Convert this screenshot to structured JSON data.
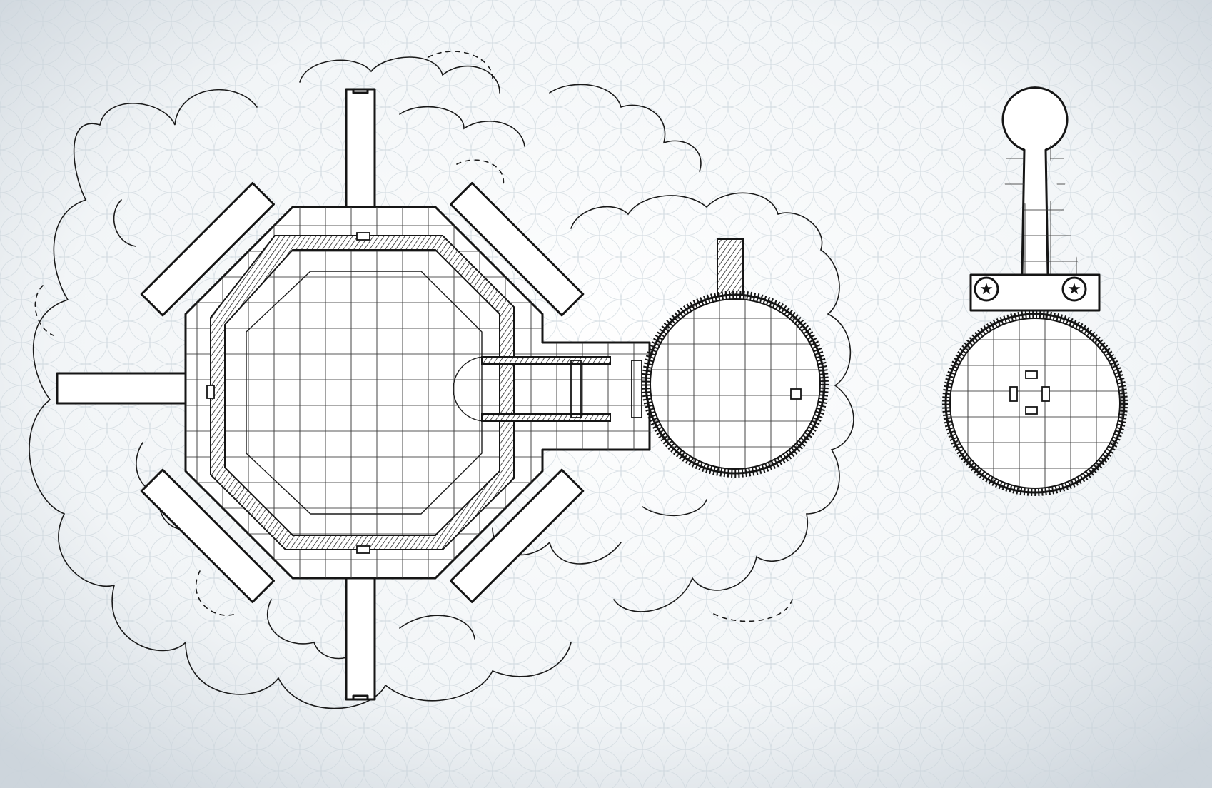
{
  "map": {
    "title": "",
    "background": "#dfe5ea",
    "paper": "#ffffff",
    "ink": "#151515",
    "areas": [
      {
        "id": "octagon-keep",
        "kind": "octagonal-chamber",
        "radial_bridges": 8
      },
      {
        "id": "connecting-hall",
        "kind": "corridor",
        "doors": 4
      },
      {
        "id": "round-chamber",
        "kind": "circular-room",
        "features": [
          "rubble-chute",
          "altar-box"
        ]
      },
      {
        "id": "tower-room",
        "kind": "circular-room",
        "features": [
          "star-sigil",
          "star-sigil",
          "altar-stones"
        ]
      }
    ],
    "legend_icons": [
      "star-icon",
      "star-icon"
    ]
  }
}
